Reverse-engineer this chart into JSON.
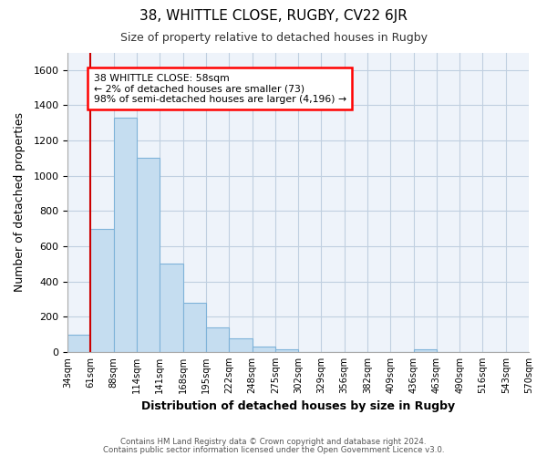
{
  "title": "38, WHITTLE CLOSE, RUGBY, CV22 6JR",
  "subtitle": "Size of property relative to detached houses in Rugby",
  "xlabel": "Distribution of detached houses by size in Rugby",
  "ylabel": "Number of detached properties",
  "bar_color": "#c5ddf0",
  "bar_edge_color": "#7fb3d9",
  "highlight_color": "#cc0000",
  "bins": [
    "34sqm",
    "61sqm",
    "88sqm",
    "114sqm",
    "141sqm",
    "168sqm",
    "195sqm",
    "222sqm",
    "248sqm",
    "275sqm",
    "302sqm",
    "329sqm",
    "356sqm",
    "382sqm",
    "409sqm",
    "436sqm",
    "463sqm",
    "490sqm",
    "516sqm",
    "543sqm",
    "570sqm"
  ],
  "values": [
    100,
    700,
    1330,
    1100,
    500,
    280,
    140,
    75,
    30,
    15,
    0,
    0,
    0,
    0,
    0,
    15,
    0,
    0,
    0,
    0
  ],
  "red_line_x": 1,
  "annotation_line1": "38 WHITTLE CLOSE: 58sqm",
  "annotation_line2": "← 2% of detached houses are smaller (73)",
  "annotation_line3": "98% of semi-detached houses are larger (4,196) →",
  "ylim": [
    0,
    1700
  ],
  "yticks": [
    0,
    200,
    400,
    600,
    800,
    1000,
    1200,
    1400,
    1600
  ],
  "footer_line1": "Contains HM Land Registry data © Crown copyright and database right 2024.",
  "footer_line2": "Contains public sector information licensed under the Open Government Licence v3.0.",
  "bg_color": "#ffffff",
  "plot_bg_color": "#eef3fa",
  "grid_color": "#c0cfe0"
}
